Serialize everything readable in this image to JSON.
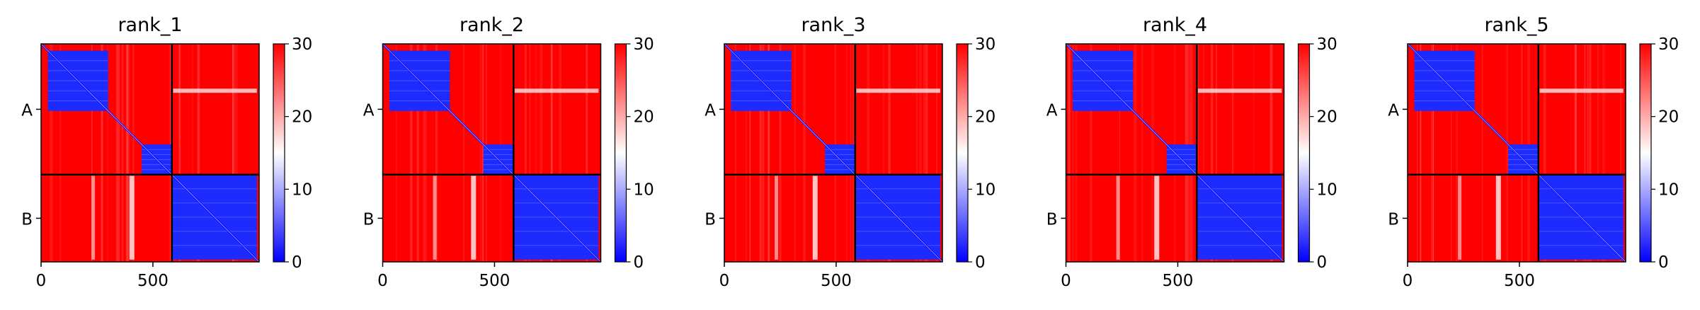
{
  "figure": {
    "panel_count": 5
  },
  "chart_data": [
    {
      "type": "heatmap",
      "title": "rank_1",
      "xlabel": "",
      "ylabel": "",
      "x_ticks": [
        0,
        500
      ],
      "xlim": [
        0,
        975
      ],
      "ylim": [
        975,
        0
      ],
      "chain_boundary": 585,
      "chains": [
        "A",
        "B"
      ],
      "colorbar": {
        "min": 0,
        "max": 30,
        "ticks": [
          0,
          10,
          20,
          30
        ],
        "colormap": "bwr",
        "low_color": "#0000ff",
        "mid_color": "#ffffff",
        "high_color": "#ff0000"
      },
      "low_pae_blocks": [
        {
          "x": [
            30,
            300
          ],
          "y": [
            30,
            300
          ]
        },
        {
          "x": [
            450,
            585
          ],
          "y": [
            450,
            585
          ]
        },
        {
          "x": [
            585,
            965
          ],
          "y": [
            585,
            965
          ]
        }
      ]
    },
    {
      "type": "heatmap",
      "title": "rank_2",
      "xlabel": "",
      "ylabel": "",
      "x_ticks": [
        0,
        500
      ],
      "xlim": [
        0,
        975
      ],
      "ylim": [
        975,
        0
      ],
      "chain_boundary": 585,
      "chains": [
        "A",
        "B"
      ],
      "colorbar": {
        "min": 0,
        "max": 30,
        "ticks": [
          0,
          10,
          20,
          30
        ],
        "colormap": "bwr",
        "low_color": "#0000ff",
        "mid_color": "#ffffff",
        "high_color": "#ff0000"
      },
      "low_pae_blocks": [
        {
          "x": [
            30,
            300
          ],
          "y": [
            30,
            300
          ]
        },
        {
          "x": [
            450,
            585
          ],
          "y": [
            450,
            585
          ]
        },
        {
          "x": [
            585,
            965
          ],
          "y": [
            585,
            965
          ]
        }
      ]
    },
    {
      "type": "heatmap",
      "title": "rank_3",
      "xlabel": "",
      "ylabel": "",
      "x_ticks": [
        0,
        500
      ],
      "xlim": [
        0,
        975
      ],
      "ylim": [
        975,
        0
      ],
      "chain_boundary": 585,
      "chains": [
        "A",
        "B"
      ],
      "colorbar": {
        "min": 0,
        "max": 30,
        "ticks": [
          0,
          10,
          20,
          30
        ],
        "colormap": "bwr",
        "low_color": "#0000ff",
        "mid_color": "#ffffff",
        "high_color": "#ff0000"
      },
      "low_pae_blocks": [
        {
          "x": [
            30,
            300
          ],
          "y": [
            30,
            300
          ]
        },
        {
          "x": [
            450,
            585
          ],
          "y": [
            450,
            585
          ]
        },
        {
          "x": [
            585,
            965
          ],
          "y": [
            585,
            965
          ]
        }
      ]
    },
    {
      "type": "heatmap",
      "title": "rank_4",
      "xlabel": "",
      "ylabel": "",
      "x_ticks": [
        0,
        500
      ],
      "xlim": [
        0,
        975
      ],
      "ylim": [
        975,
        0
      ],
      "chain_boundary": 585,
      "chains": [
        "A",
        "B"
      ],
      "colorbar": {
        "min": 0,
        "max": 30,
        "ticks": [
          0,
          10,
          20,
          30
        ],
        "colormap": "bwr",
        "low_color": "#0000ff",
        "mid_color": "#ffffff",
        "high_color": "#ff0000"
      },
      "low_pae_blocks": [
        {
          "x": [
            30,
            300
          ],
          "y": [
            30,
            300
          ]
        },
        {
          "x": [
            450,
            585
          ],
          "y": [
            450,
            585
          ]
        },
        {
          "x": [
            585,
            965
          ],
          "y": [
            585,
            965
          ]
        }
      ]
    },
    {
      "type": "heatmap",
      "title": "rank_5",
      "xlabel": "",
      "ylabel": "",
      "x_ticks": [
        0,
        500
      ],
      "xlim": [
        0,
        975
      ],
      "ylim": [
        975,
        0
      ],
      "chain_boundary": 585,
      "chains": [
        "A",
        "B"
      ],
      "colorbar": {
        "min": 0,
        "max": 30,
        "ticks": [
          0,
          10,
          20,
          30
        ],
        "colormap": "bwr",
        "low_color": "#0000ff",
        "mid_color": "#ffffff",
        "high_color": "#ff0000"
      },
      "low_pae_blocks": [
        {
          "x": [
            30,
            300
          ],
          "y": [
            30,
            300
          ]
        },
        {
          "x": [
            450,
            585
          ],
          "y": [
            450,
            585
          ]
        },
        {
          "x": [
            585,
            965
          ],
          "y": [
            585,
            965
          ]
        }
      ]
    }
  ]
}
